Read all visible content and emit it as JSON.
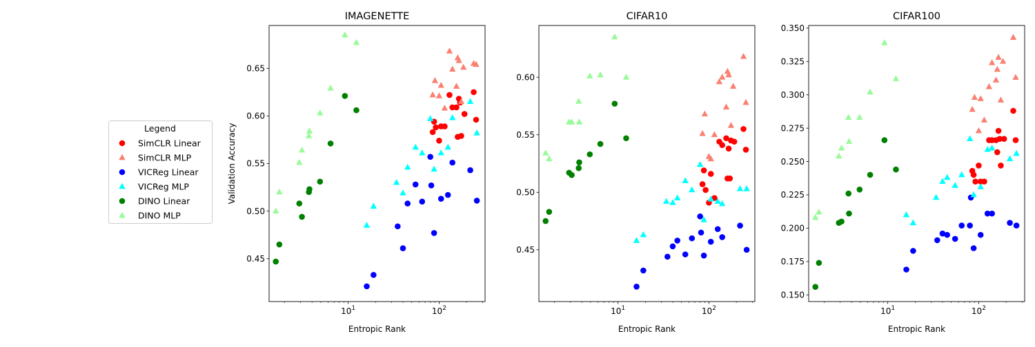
{
  "legend": {
    "title": "Legend",
    "placement": "left-outside",
    "entries": [
      {
        "label": "SimCLR Linear",
        "color": "#ff0000",
        "marker": "circle"
      },
      {
        "label": "SimCLR MLP",
        "color": "#fa8072",
        "marker": "triangle"
      },
      {
        "label": "VICReg Linear",
        "color": "#0000ff",
        "marker": "circle"
      },
      {
        "label": "VICReg MLP",
        "color": "#00ffff",
        "marker": "triangle"
      },
      {
        "label": "DINO Linear",
        "color": "#008000",
        "marker": "circle"
      },
      {
        "label": "DINO MLP",
        "color": "#98fb98",
        "marker": "triangle"
      }
    ]
  },
  "chart_data": [
    {
      "type": "scatter",
      "title": "IMAGENETTE",
      "xlabel": "Entropic Rank",
      "ylabel": "Validation Accuracy",
      "xscale": "log",
      "xlim": [
        1.35,
        320
      ],
      "ylim": [
        0.405,
        0.695
      ],
      "xticks": [
        {
          "value": 10,
          "label": "10^1"
        },
        {
          "value": 100,
          "label": "10^2"
        }
      ],
      "yticks": [
        0.45,
        0.5,
        0.55,
        0.6,
        0.65
      ],
      "ytick_labels": [
        "0.45",
        "0.50",
        "0.55",
        "0.60",
        "0.65"
      ],
      "series": [
        {
          "name": "SimCLR Linear",
          "marker": "circle",
          "color": "#ff0000",
          "x": [
            85,
            88,
            92,
            100,
            105,
            115,
            130,
            140,
            155,
            160,
            165,
            170,
            175,
            190,
            240,
            255
          ],
          "y": [
            0.583,
            0.594,
            0.588,
            0.574,
            0.589,
            0.589,
            0.622,
            0.609,
            0.609,
            0.578,
            0.618,
            0.614,
            0.579,
            0.602,
            0.625,
            0.596
          ]
        },
        {
          "name": "SimCLR MLP",
          "marker": "triangle",
          "color": "#fa8072",
          "x": [
            85,
            90,
            100,
            105,
            115,
            130,
            140,
            155,
            160,
            165,
            175,
            185,
            240,
            255
          ],
          "y": [
            0.622,
            0.637,
            0.621,
            0.632,
            0.608,
            0.668,
            0.649,
            0.631,
            0.661,
            0.658,
            0.615,
            0.651,
            0.655,
            0.654
          ]
        },
        {
          "name": "VICReg Linear",
          "marker": "circle",
          "color": "#0000ff",
          "x": [
            16,
            19,
            35,
            40,
            45,
            55,
            65,
            80,
            82,
            88,
            105,
            125,
            140,
            220,
            260
          ],
          "y": [
            0.421,
            0.433,
            0.484,
            0.461,
            0.508,
            0.528,
            0.51,
            0.557,
            0.527,
            0.477,
            0.513,
            0.517,
            0.551,
            0.543,
            0.511
          ]
        },
        {
          "name": "VICReg MLP",
          "marker": "triangle",
          "color": "#00ffff",
          "x": [
            16,
            19,
            34,
            40,
            45,
            55,
            65,
            80,
            88,
            105,
            125,
            140,
            220,
            260
          ],
          "y": [
            0.485,
            0.505,
            0.53,
            0.519,
            0.546,
            0.567,
            0.561,
            0.597,
            0.544,
            0.561,
            0.567,
            0.598,
            0.615,
            0.582
          ]
        },
        {
          "name": "DINO Linear",
          "marker": "circle",
          "color": "#008000",
          "x": [
            1.6,
            1.75,
            2.9,
            3.1,
            3.7,
            3.75,
            4.9,
            6.4,
            9.2,
            12.3
          ],
          "y": [
            0.447,
            0.465,
            0.508,
            0.494,
            0.52,
            0.523,
            0.531,
            0.571,
            0.621,
            0.606
          ]
        },
        {
          "name": "DINO MLP",
          "marker": "triangle",
          "color": "#98fb98",
          "x": [
            1.6,
            1.75,
            2.9,
            3.1,
            3.7,
            3.75,
            4.9,
            6.4,
            9.2,
            12.3
          ],
          "y": [
            0.5,
            0.52,
            0.551,
            0.564,
            0.579,
            0.584,
            0.603,
            0.629,
            0.685,
            0.677
          ]
        }
      ]
    },
    {
      "type": "scatter",
      "title": "CIFAR10",
      "xlabel": "Entropic Rank",
      "ylabel": "",
      "xscale": "log",
      "xlim": [
        1.35,
        320
      ],
      "ylim": [
        0.405,
        0.645
      ],
      "xticks": [
        {
          "value": 10,
          "label": "10^1"
        },
        {
          "value": 100,
          "label": "10^2"
        }
      ],
      "yticks": [
        0.45,
        0.5,
        0.55,
        0.6
      ],
      "ytick_labels": [
        "0.45",
        "0.50",
        "0.55",
        "0.60"
      ],
      "series": [
        {
          "name": "SimCLR Linear",
          "marker": "circle",
          "color": "#ff0000",
          "x": [
            85,
            88,
            92,
            100,
            105,
            115,
            130,
            140,
            155,
            160,
            165,
            170,
            175,
            190,
            240,
            255
          ],
          "y": [
            0.507,
            0.519,
            0.502,
            0.491,
            0.516,
            0.495,
            0.544,
            0.541,
            0.547,
            0.512,
            0.538,
            0.512,
            0.545,
            0.544,
            0.555,
            0.537
          ]
        },
        {
          "name": "SimCLR MLP",
          "marker": "triangle",
          "color": "#fa8072",
          "x": [
            85,
            90,
            100,
            105,
            115,
            130,
            140,
            155,
            160,
            165,
            175,
            185,
            240,
            255
          ],
          "y": [
            0.551,
            0.568,
            0.531,
            0.529,
            0.55,
            0.596,
            0.6,
            0.574,
            0.605,
            0.602,
            0.558,
            0.592,
            0.618,
            0.578
          ]
        },
        {
          "name": "VICReg Linear",
          "marker": "circle",
          "color": "#0000ff",
          "x": [
            16,
            19,
            35,
            40,
            45,
            55,
            65,
            80,
            82,
            88,
            105,
            125,
            140,
            220,
            260
          ],
          "y": [
            0.418,
            0.432,
            0.444,
            0.453,
            0.458,
            0.446,
            0.46,
            0.479,
            0.465,
            0.445,
            0.457,
            0.468,
            0.461,
            0.471,
            0.45
          ]
        },
        {
          "name": "VICReg MLP",
          "marker": "triangle",
          "color": "#00ffff",
          "x": [
            16,
            19,
            34,
            40,
            45,
            55,
            65,
            80,
            88,
            105,
            125,
            140,
            220,
            260
          ],
          "y": [
            0.458,
            0.463,
            0.492,
            0.491,
            0.495,
            0.51,
            0.502,
            0.524,
            0.476,
            0.494,
            0.492,
            0.49,
            0.503,
            0.503
          ]
        },
        {
          "name": "DINO Linear",
          "marker": "circle",
          "color": "#008000",
          "x": [
            1.6,
            1.75,
            2.9,
            3.1,
            3.7,
            3.75,
            4.9,
            6.4,
            9.2,
            12.3
          ],
          "y": [
            0.475,
            0.483,
            0.517,
            0.515,
            0.521,
            0.526,
            0.533,
            0.542,
            0.577,
            0.547
          ]
        },
        {
          "name": "DINO MLP",
          "marker": "triangle",
          "color": "#98fb98",
          "x": [
            1.6,
            1.75,
            2.9,
            3.1,
            3.7,
            3.75,
            4.9,
            6.4,
            9.2,
            12.3
          ],
          "y": [
            0.534,
            0.529,
            0.561,
            0.561,
            0.579,
            0.561,
            0.601,
            0.602,
            0.635,
            0.6
          ]
        }
      ]
    },
    {
      "type": "scatter",
      "title": "CIFAR100",
      "xlabel": "Entropic Rank",
      "ylabel": "",
      "xscale": "log",
      "xlim": [
        1.35,
        320
      ],
      "ylim": [
        0.145,
        0.352
      ],
      "xticks": [
        {
          "value": 10,
          "label": "10^1"
        },
        {
          "value": 100,
          "label": "10^2"
        }
      ],
      "yticks": [
        0.15,
        0.175,
        0.2,
        0.225,
        0.25,
        0.275,
        0.3,
        0.325,
        0.35
      ],
      "ytick_labels": [
        "0.150",
        "0.175",
        "0.200",
        "0.225",
        "0.250",
        "0.275",
        "0.300",
        "0.325",
        "0.350"
      ],
      "series": [
        {
          "name": "SimCLR Linear",
          "marker": "circle",
          "color": "#ff0000",
          "x": [
            85,
            88,
            92,
            100,
            105,
            115,
            130,
            140,
            155,
            160,
            165,
            170,
            175,
            190,
            240,
            255
          ],
          "y": [
            0.243,
            0.24,
            0.235,
            0.247,
            0.235,
            0.235,
            0.266,
            0.266,
            0.266,
            0.257,
            0.273,
            0.267,
            0.247,
            0.267,
            0.288,
            0.266
          ]
        },
        {
          "name": "SimCLR MLP",
          "marker": "triangle",
          "color": "#fa8072",
          "x": [
            85,
            90,
            100,
            105,
            115,
            130,
            140,
            155,
            160,
            165,
            175,
            185,
            240,
            255
          ],
          "y": [
            0.289,
            0.298,
            0.273,
            0.297,
            0.281,
            0.306,
            0.324,
            0.311,
            0.319,
            0.328,
            0.296,
            0.325,
            0.343,
            0.313
          ]
        },
        {
          "name": "VICReg Linear",
          "marker": "circle",
          "color": "#0000ff",
          "x": [
            16,
            19,
            35,
            40,
            45,
            55,
            65,
            80,
            82,
            88,
            105,
            125,
            140,
            220,
            260
          ],
          "y": [
            0.169,
            0.183,
            0.191,
            0.196,
            0.195,
            0.192,
            0.202,
            0.202,
            0.223,
            0.185,
            0.195,
            0.211,
            0.211,
            0.204,
            0.202
          ]
        },
        {
          "name": "VICReg MLP",
          "marker": "triangle",
          "color": "#00ffff",
          "x": [
            16,
            19,
            34,
            40,
            45,
            55,
            65,
            80,
            88,
            105,
            125,
            140,
            220,
            260
          ],
          "y": [
            0.21,
            0.204,
            0.223,
            0.235,
            0.238,
            0.232,
            0.24,
            0.267,
            0.225,
            0.231,
            0.259,
            0.26,
            0.252,
            0.256
          ]
        },
        {
          "name": "DINO Linear",
          "marker": "circle",
          "color": "#008000",
          "x": [
            1.6,
            1.75,
            2.9,
            3.1,
            3.7,
            3.75,
            4.9,
            6.4,
            9.2,
            12.3
          ],
          "y": [
            0.156,
            0.174,
            0.204,
            0.205,
            0.226,
            0.211,
            0.229,
            0.24,
            0.266,
            0.244
          ]
        },
        {
          "name": "DINO MLP",
          "marker": "triangle",
          "color": "#98fb98",
          "x": [
            1.6,
            1.75,
            2.9,
            3.1,
            3.7,
            3.75,
            4.9,
            6.4,
            9.2,
            12.3
          ],
          "y": [
            0.208,
            0.212,
            0.254,
            0.26,
            0.283,
            0.265,
            0.283,
            0.302,
            0.339,
            0.312
          ]
        }
      ]
    }
  ]
}
